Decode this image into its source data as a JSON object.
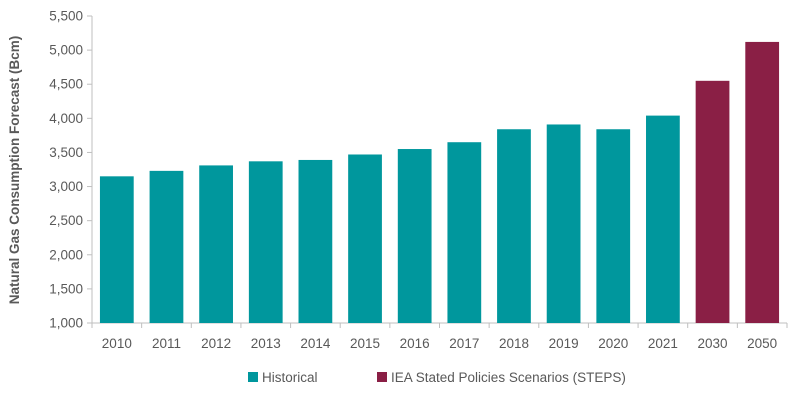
{
  "chart_data": {
    "type": "bar",
    "title": "",
    "xlabel": "",
    "ylabel": "Natural Gas Consumption Forecast (Bcm)",
    "ylim": [
      1000,
      5500
    ],
    "yticks": [
      1000,
      1500,
      2000,
      2500,
      3000,
      3500,
      4000,
      4500,
      5000,
      5500
    ],
    "ytick_labels": [
      "1,000",
      "1,500",
      "2,000",
      "2,500",
      "3,000",
      "3,500",
      "4,000",
      "4,500",
      "5,000",
      "5,500"
    ],
    "categories": [
      "2010",
      "2011",
      "2012",
      "2013",
      "2014",
      "2015",
      "2016",
      "2017",
      "2018",
      "2019",
      "2020",
      "2021",
      "2030",
      "2050"
    ],
    "values": [
      3150,
      3230,
      3310,
      3370,
      3390,
      3470,
      3550,
      3650,
      3840,
      3910,
      3840,
      4040,
      4550,
      5120
    ],
    "bar_series": [
      "Historical",
      "Historical",
      "Historical",
      "Historical",
      "Historical",
      "Historical",
      "Historical",
      "Historical",
      "Historical",
      "Historical",
      "Historical",
      "Historical",
      "IEA Stated Policies Scenarios (STEPS)",
      "IEA Stated Policies Scenarios (STEPS)"
    ],
    "series": [
      {
        "name": "Historical",
        "color": "#00979D"
      },
      {
        "name": "IEA Stated Policies Scenarios (STEPS)",
        "color": "#8A1F45"
      }
    ],
    "grid": false,
    "legend_position": "bottom-center"
  }
}
